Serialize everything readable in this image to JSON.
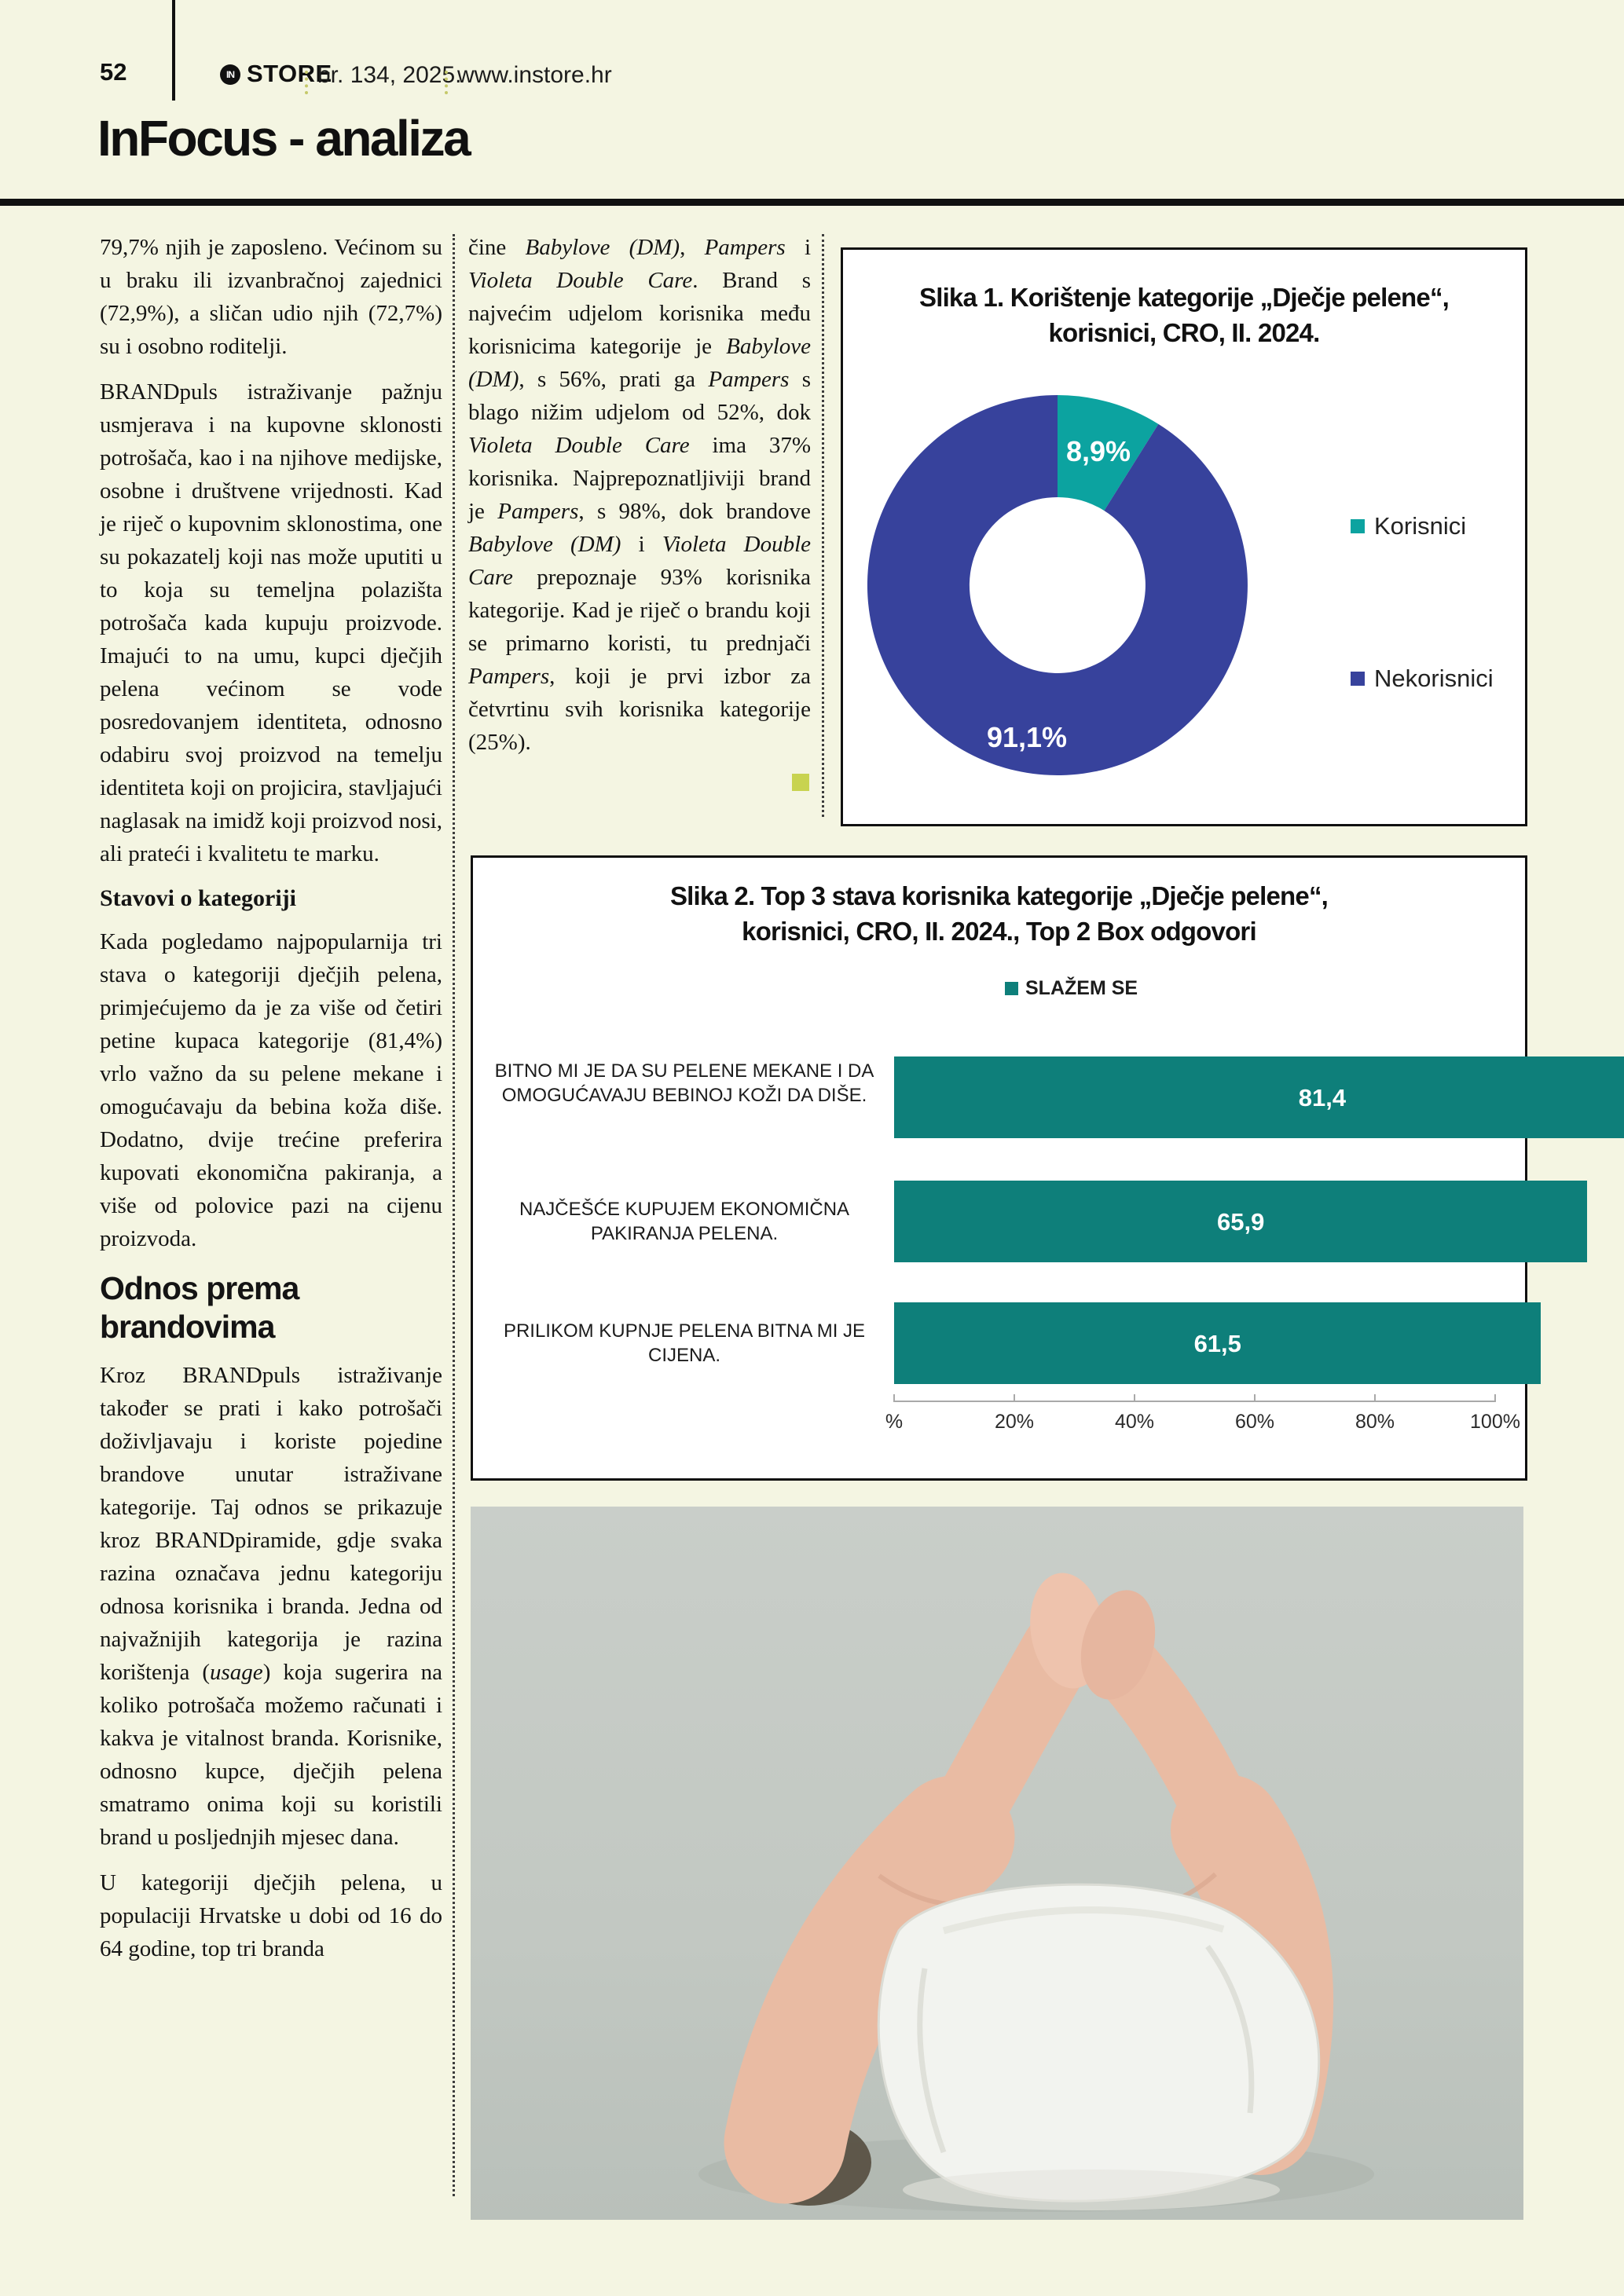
{
  "header": {
    "page_number": "52",
    "brand": "STORE",
    "logo_monogram": "IN",
    "issue": "br. 134, 2025.",
    "website": "www.instore.hr"
  },
  "title": "InFocus - analiza",
  "article": {
    "end_marker_color": "#c8d350",
    "col1_p1": [
      [
        "79,7% njih je zaposleno. Većinom su u braku ili izvanbračnoj zajednici (72,9%), a sličan udio njih (72,7%) su i osobno roditelji.",
        0
      ]
    ],
    "col1_p2": [
      [
        "BRANDpuls istraživanje pažnju usmjerava i na kupovne sklonosti potrošača, kao i na njihove medijske, osobne i društvene vrijednosti. Kad je riječ o kupovnim sklonostima, one su pokazatelj koji nas može uputiti u to koja su temeljna polazišta potrošača kada kupuju proizvode. Imajući to na umu, kupci dječjih pelena većinom se vode posredovanjem identiteta, odnosno odabiru svoj proizvod na temelju identiteta koji on projicira, stavljajući naglasak na imidž koji proizvod nosi, ali prateći i kvalitetu te marku.",
        0
      ]
    ],
    "col1_h1": "Stavovi o kategoriji",
    "col1_p3": [
      [
        "Kada pogledamo najpopularnija tri stava o kategoriji dječjih pelena, primjećujemo da je za više od četiri petine kupaca kategorije (81,4%) vrlo važno da su pelene mekane i omogućavaju da bebina koža diše. Dodatno, dvije trećine preferira kupovati ekonomična pakiranja, a više od polovice pazi na cijenu proizvoda.",
        0
      ]
    ],
    "col1_h2": "Odnos prema brandovima",
    "col1_p4": [
      [
        "Kroz BRANDpuls istraživanje također se prati i kako potrošači doživljavaju i koriste pojedine brandove unutar istraživane kategorije. Taj odnos se prikazuje kroz BRANDpiramide, gdje svaka razina označava jednu kategoriju odnosa korisnika i branda. Jedna od najvažnijih kategorija je razina korištenja (",
        0
      ],
      [
        "usage",
        1
      ],
      [
        ") koja sugerira na koliko potrošača možemo računati i kakva je vitalnost branda. Korisnike, odnosno kupce, dječjih pelena smatramo onima koji su koristili brand u posljednjih mjesec dana.",
        0
      ]
    ],
    "col1_p5": [
      [
        "U kategoriji dječjih pelena, u populaciji Hrvatske u dobi od 16 do 64 godine, top tri branda",
        0
      ]
    ],
    "col2_p1": [
      [
        "čine ",
        0
      ],
      [
        "Babylove (DM)",
        1
      ],
      [
        ", ",
        0
      ],
      [
        "Pampers",
        1
      ],
      [
        " i ",
        0
      ],
      [
        "Violeta Double Care",
        1
      ],
      [
        ". Brand s najvećim udjelom korisnika među korisnicima kategorije je ",
        0
      ],
      [
        "Babylove (DM)",
        1
      ],
      [
        ", s 56%, prati ga ",
        0
      ],
      [
        "Pampers",
        1
      ],
      [
        " s blago nižim udjelom od 52%, dok ",
        0
      ],
      [
        "Violeta Double Care",
        1
      ],
      [
        " ima 37% korisnika. Najprepoznatljiviji brand je ",
        0
      ],
      [
        "Pampers",
        1
      ],
      [
        ", s 98%, dok brandove ",
        0
      ],
      [
        "Babylove (DM)",
        1
      ],
      [
        " i ",
        0
      ],
      [
        "Violeta Double Care",
        1
      ],
      [
        " prepoznaje 93% korisnika kategorije. Kad je riječ o brandu koji se primarno koristi, tu prednjači ",
        0
      ],
      [
        "Pampers",
        1
      ],
      [
        ", koji je prvi izbor za četvrtinu svih korisnika kategorije (25%).",
        0
      ]
    ]
  },
  "chart_data": [
    {
      "type": "pie",
      "subtype": "donut",
      "title": "Slika 1. Korištenje kategorije „Dječje pelene“, korisnici, CRO, II. 2024.",
      "title_lines": [
        "Slika 1. Korištenje kategorije „Dječje pelene“,",
        "korisnici, CRO, II. 2024."
      ],
      "categories": [
        "Korisnici",
        "Nekorisnici"
      ],
      "values": [
        8.9,
        91.1
      ],
      "value_labels": [
        "8,9%",
        "91,1%"
      ],
      "colors": [
        "#0ca3a0",
        "#37429c"
      ],
      "legend_position": "right"
    },
    {
      "type": "bar",
      "orientation": "horizontal",
      "title": "Slika 2. Top 3 stava korisnika kategorije „Dječje pelene“, korisnici, CRO, II. 2024., Top 2 Box odgovori",
      "title_lines": [
        "Slika 2. Top 3 stava korisnika kategorije „Dječje pelene“,",
        "korisnici, CRO, II. 2024., Top 2 Box odgovori"
      ],
      "legend": [
        "SLAŽEM SE"
      ],
      "categories": [
        "BITNO MI JE DA SU PELENE MEKANE I DA OMOGUĆAVAJU BEBINOJ KOŽI DA DIŠE.",
        "NAJČEŠĆE KUPUJEM EKONOMIČNA PAKIRANJA PELENA.",
        "PRILIKOM KUPNJE PELENA BITNA MI JE CIJENA."
      ],
      "values": [
        81.4,
        65.9,
        61.5
      ],
      "value_labels": [
        "81,4",
        "65,9",
        "61,5"
      ],
      "bar_color": "#0e7f7a",
      "x_ticks": [
        "%",
        "20%",
        "40%",
        "60%",
        "80%",
        "100%"
      ],
      "xlim": [
        0,
        100
      ],
      "grid": false
    }
  ]
}
